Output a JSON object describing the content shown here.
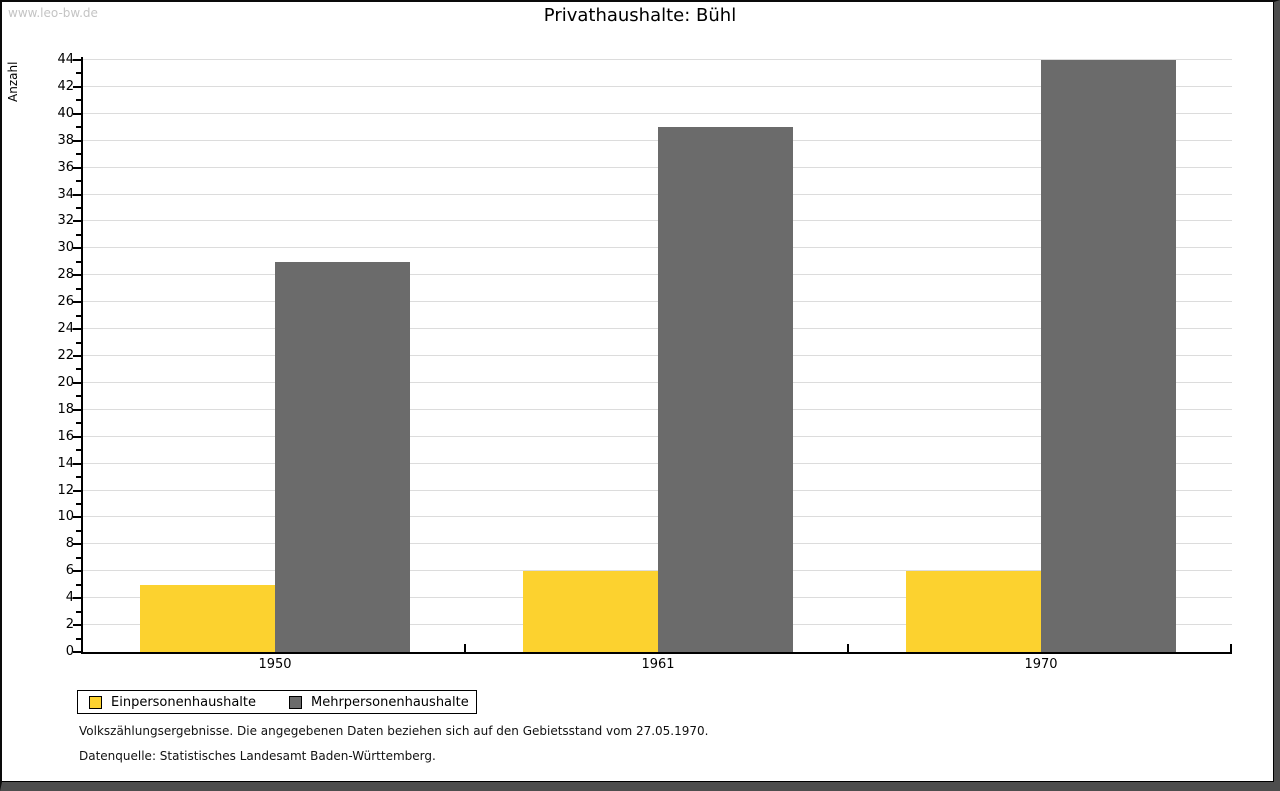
{
  "watermark": "www.leo-bw.de",
  "chart_data": {
    "type": "bar",
    "title": "Privathaushalte: Bühl",
    "xlabel": "",
    "ylabel": "Anzahl",
    "categories": [
      "1950",
      "1961",
      "1970"
    ],
    "series": [
      {
        "name": "Einpersonenhaushalte",
        "color": "#fcd22f",
        "values": [
          5,
          6,
          6
        ]
      },
      {
        "name": "Mehrpersonenhaushalte",
        "color": "#6b6b6b",
        "values": [
          29,
          39,
          44
        ]
      }
    ],
    "ylim": [
      0,
      44
    ],
    "ytick_step": 2,
    "minor_tick_step": 1,
    "grid": true,
    "gridline_color": "#dcdcdc",
    "legend_position": "bottom-left"
  },
  "footnotes": [
    "Volkszählungsergebnisse. Die angegebenen Daten beziehen sich auf den Gebietsstand vom 27.05.1970.",
    "Datenquelle: Statistisches Landesamt Baden-Württemberg."
  ]
}
